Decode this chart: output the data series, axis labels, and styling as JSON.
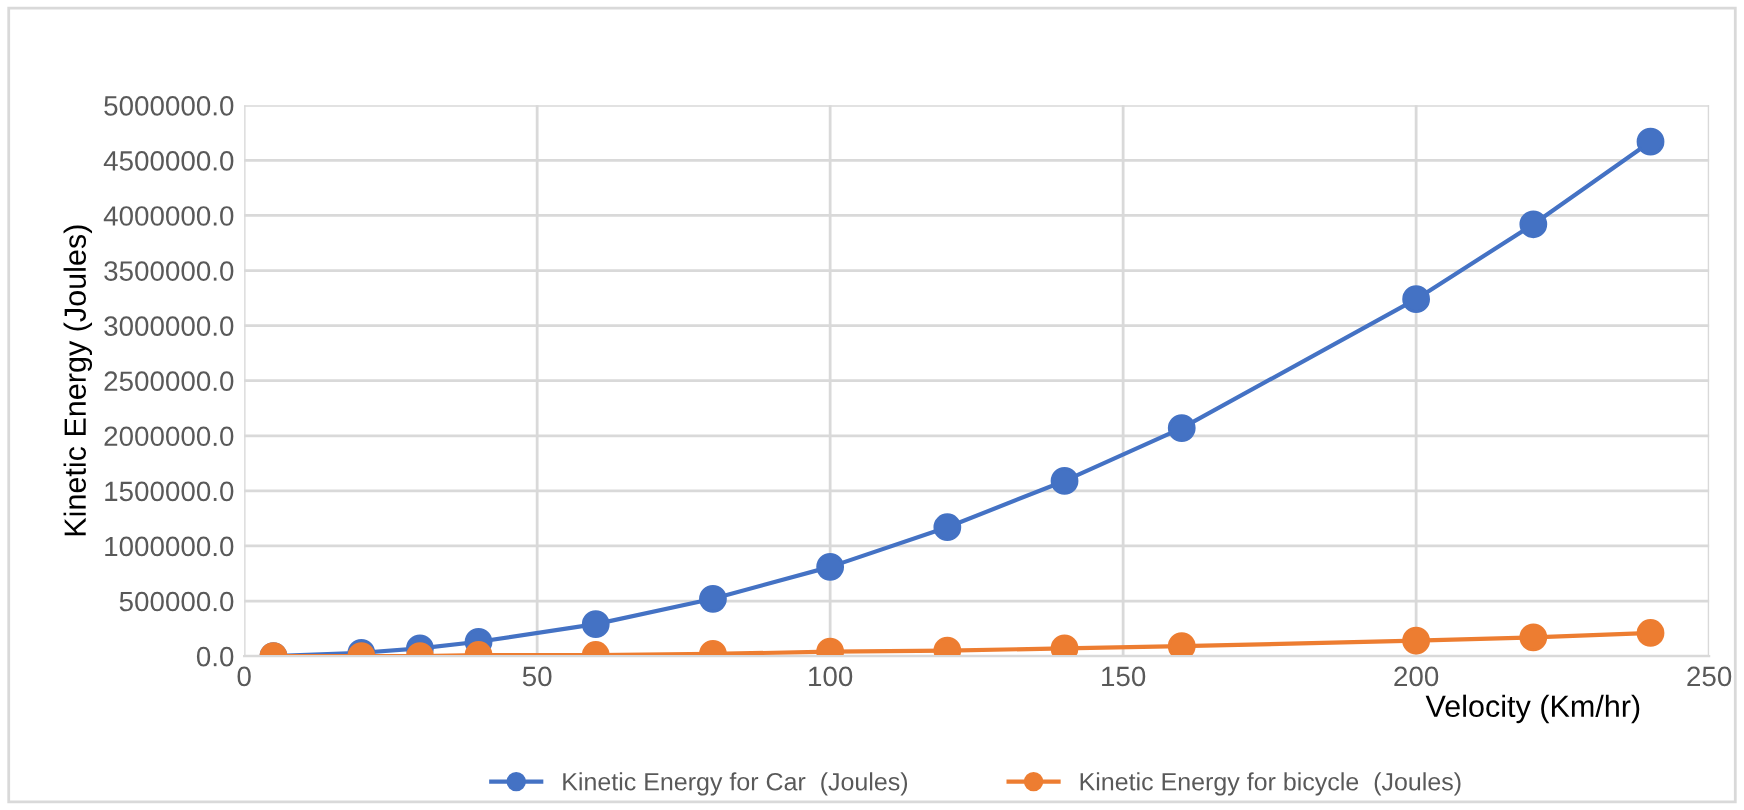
{
  "chart_data": {
    "type": "line",
    "xlabel": "Velocity (Km/hr)",
    "ylabel": "Kinetic Energy (Joules)",
    "x": [
      5,
      20,
      30,
      40,
      60,
      80,
      100,
      120,
      140,
      160,
      200,
      220,
      240
    ],
    "series": [
      {
        "name": "Kinetic Energy for Car  (Joules)",
        "color": "#4472c4",
        "values": [
          0,
          30000,
          70000,
          130000,
          290000,
          520000,
          810000,
          1170000,
          1590000,
          2070000,
          3240000,
          3920000,
          4670000
        ]
      },
      {
        "name": "Kinetic Energy for bicycle  (Joules)",
        "color": "#ed7d31",
        "values": [
          0,
          0,
          0,
          10000,
          10000,
          20000,
          40000,
          50000,
          70000,
          90000,
          140000,
          170000,
          210000
        ]
      }
    ],
    "xlim": [
      0,
      250
    ],
    "xticks": [
      0,
      50,
      100,
      150,
      200,
      250
    ],
    "ylim": [
      0,
      5000000
    ],
    "yticks": [
      {
        "value": 0,
        "label": "0.0"
      },
      {
        "value": 500000,
        "label": "500000.0"
      },
      {
        "value": 1000000,
        "label": "1000000.0"
      },
      {
        "value": 1500000,
        "label": "1500000.0"
      },
      {
        "value": 2000000,
        "label": "2000000.0"
      },
      {
        "value": 2500000,
        "label": "2500000.0"
      },
      {
        "value": 3000000,
        "label": "3000000.0"
      },
      {
        "value": 3500000,
        "label": "3500000.0"
      },
      {
        "value": 4000000,
        "label": "4000000.0"
      },
      {
        "value": 4500000,
        "label": "4500000.0"
      },
      {
        "value": 5000000,
        "label": "5000000.0"
      }
    ],
    "grid": true,
    "legend": "bottom",
    "marker": "circle",
    "line_style": "solid"
  }
}
